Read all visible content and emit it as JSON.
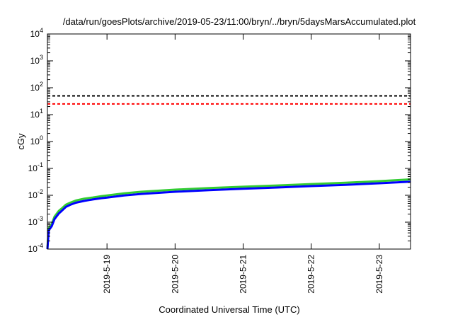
{
  "chart_data": {
    "type": "line",
    "title": "/data/run/goesPlots/archive/2019-05-23/11:00/bryn/../bryn/5daysMarsAccumulated.plot",
    "xlabel": "Coordinated Universal Time (UTC)",
    "ylabel": "cGy",
    "xlim": [
      "2019-05-18T03:00",
      "2019-05-23T11:00"
    ],
    "ylim": [
      0.0001,
      10000
    ],
    "y_scale": "log",
    "grid": false,
    "x_ticks": [
      {
        "x": "2019-05-19T00:00",
        "label": "2019-5-19"
      },
      {
        "x": "2019-05-20T00:00",
        "label": "2019-5-20"
      },
      {
        "x": "2019-05-21T00:00",
        "label": "2019-5-21"
      },
      {
        "x": "2019-05-22T00:00",
        "label": "2019-5-22"
      },
      {
        "x": "2019-05-23T00:00",
        "label": "2019-5-23"
      }
    ],
    "y_ticks": [
      {
        "y": 0.0001,
        "base": "10",
        "exp": "-4"
      },
      {
        "y": 0.001,
        "base": "10",
        "exp": "-3"
      },
      {
        "y": 0.01,
        "base": "10",
        "exp": "-2"
      },
      {
        "y": 0.1,
        "base": "10",
        "exp": "-1"
      },
      {
        "y": 1,
        "base": "10",
        "exp": "0"
      },
      {
        "y": 10,
        "base": "10",
        "exp": "1"
      },
      {
        "y": 100,
        "base": "10",
        "exp": "2"
      },
      {
        "y": 1000,
        "base": "10",
        "exp": "3"
      },
      {
        "y": 10000,
        "base": "10",
        "exp": "4"
      }
    ],
    "reference_lines": [
      {
        "y": 50,
        "color": "#000000",
        "style": "dashed"
      },
      {
        "y": 25,
        "color": "#ff0000",
        "style": "dashed"
      }
    ],
    "series": [
      {
        "color": "#33cc33",
        "x": [
          "2019-05-18T03:00",
          "2019-05-18T03:10",
          "2019-05-18T03:30",
          "2019-05-18T04:30",
          "2019-05-18T05:30",
          "2019-05-18T07:00",
          "2019-05-18T08:00",
          "2019-05-18T09:30",
          "2019-05-18T11:00",
          "2019-05-18T13:00",
          "2019-05-18T16:00",
          "2019-05-18T19:00",
          "2019-05-18T22:00",
          "2019-05-19T00:00",
          "2019-05-19T06:00",
          "2019-05-19T12:00",
          "2019-05-20T00:00",
          "2019-05-20T12:00",
          "2019-05-21T00:00",
          "2019-05-21T12:00",
          "2019-05-22T00:00",
          "2019-05-22T12:00",
          "2019-05-23T00:00",
          "2019-05-23T11:00"
        ],
        "y": [
          0.0001,
          0.00022,
          0.0006,
          0.00085,
          0.0016,
          0.0026,
          0.0032,
          0.0045,
          0.0053,
          0.0064,
          0.0075,
          0.0083,
          0.0093,
          0.0098,
          0.0118,
          0.0135,
          0.0162,
          0.0185,
          0.0208,
          0.0232,
          0.0262,
          0.0292,
          0.0335,
          0.039
        ]
      },
      {
        "color": "#0000ff",
        "x": [
          "2019-05-18T03:00",
          "2019-05-18T03:10",
          "2019-05-18T03:30",
          "2019-05-18T04:30",
          "2019-05-18T05:30",
          "2019-05-18T07:00",
          "2019-05-18T08:00",
          "2019-05-18T09:30",
          "2019-05-18T11:00",
          "2019-05-18T13:00",
          "2019-05-18T16:00",
          "2019-05-18T19:00",
          "2019-05-18T22:00",
          "2019-05-19T00:00",
          "2019-05-19T06:00",
          "2019-05-19T12:00",
          "2019-05-20T00:00",
          "2019-05-20T12:00",
          "2019-05-21T00:00",
          "2019-05-21T12:00",
          "2019-05-22T00:00",
          "2019-05-22T12:00",
          "2019-05-23T00:00",
          "2019-05-23T11:00"
        ],
        "y": [
          0.0001,
          0.00018,
          0.0005,
          0.0007,
          0.0013,
          0.0021,
          0.0026,
          0.0037,
          0.0044,
          0.0053,
          0.0062,
          0.007,
          0.0078,
          0.0082,
          0.0098,
          0.0112,
          0.0135,
          0.0155,
          0.0175,
          0.0195,
          0.022,
          0.0245,
          0.028,
          0.032
        ]
      }
    ]
  }
}
